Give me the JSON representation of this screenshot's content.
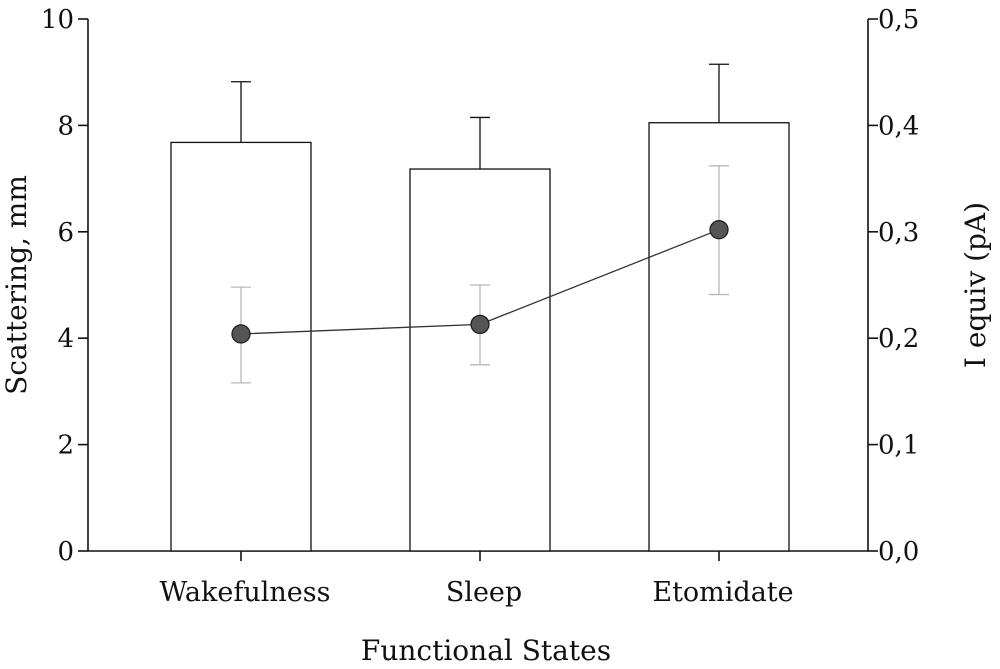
{
  "chart_data": {
    "type": "bar+line",
    "xlabel": "Functional States",
    "categories": [
      "Wakefulness",
      "Sleep",
      "Etomidate"
    ],
    "left_axis": {
      "label": "Scattering, mm",
      "ylim": [
        0,
        10
      ],
      "ticks": [
        "0",
        "2",
        "4",
        "6",
        "8",
        "10"
      ]
    },
    "right_axis": {
      "label": "I equiv (pA)",
      "ylim": [
        0,
        0.5
      ],
      "ticks": [
        "0,0",
        "0,1",
        "0,2",
        "0,3",
        "0,4",
        "0,5"
      ]
    },
    "bars": {
      "axis": "left",
      "values": [
        7.68,
        7.18,
        8.05
      ],
      "error_upper": [
        8.82,
        8.15,
        9.15
      ]
    },
    "line": {
      "axis": "right",
      "values": [
        0.204,
        0.213,
        0.302
      ],
      "error_lower": [
        0.158,
        0.175,
        0.241
      ],
      "error_upper": [
        0.248,
        0.25,
        0.362
      ]
    },
    "grid": false,
    "colors": {
      "bar_fill": "#ffffff",
      "bar_edge": "#111111",
      "point_fill": "#555555",
      "point_error": "#b8b8b8"
    }
  }
}
